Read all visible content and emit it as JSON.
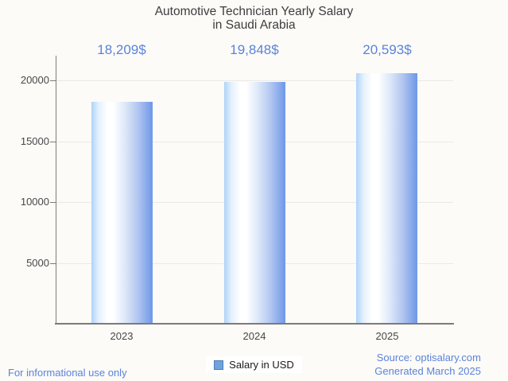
{
  "chart_data": {
    "type": "bar",
    "title": "Automotive Technician Yearly Salary in Saudi Arabia",
    "title_lines": [
      "Automotive Technician Yearly Salary",
      "in Saudi Arabia"
    ],
    "categories": [
      "2023",
      "2024",
      "2025"
    ],
    "series": [
      {
        "name": "Salary in USD",
        "values": [
          18209,
          19848,
          20593
        ]
      }
    ],
    "value_labels": [
      "18,209$",
      "19,848$",
      "20,593$"
    ],
    "yticks": [
      5000,
      10000,
      15000,
      20000
    ],
    "ytick_labels": [
      "5000",
      "10000",
      "15000",
      "20000"
    ],
    "ylim": [
      0,
      21400
    ],
    "xlabel": "",
    "ylabel": "",
    "grid": true,
    "legend_position": "bottom"
  },
  "legend": {
    "label": "Salary in USD"
  },
  "footer": {
    "disclaimer": "For informational use only",
    "source": "Source: optisalary.com",
    "generated": "Generated March 2025"
  },
  "colors": {
    "background": "#fcfbf8",
    "title_text": "#3d3d3d",
    "axis_text": "#474747",
    "value_label_text": "#5b83da",
    "footer_text": "#5b83da",
    "axis_line": "#7b7b7b",
    "gridline": "#e9e9e6",
    "bar_left": "#aed4f8",
    "bar_highlight": "#ffffff",
    "bar_right": "#6e97e8",
    "swatch_fill": "#6fa3dc",
    "swatch_border": "#4d7ab0"
  }
}
